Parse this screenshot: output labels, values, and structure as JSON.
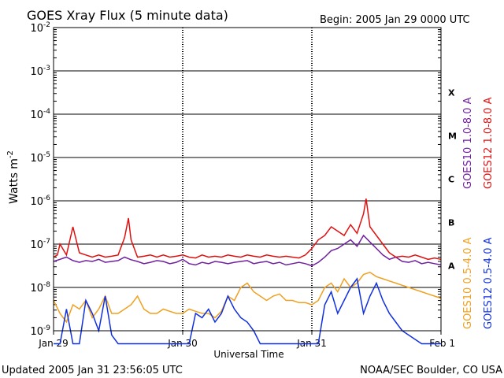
{
  "chart_data": {
    "type": "line",
    "title": "GOES Xray Flux (5 minute data)",
    "begin_label": "Begin:  2005 Jan 29 0000 UTC",
    "xlabel": "Universal Time",
    "ylabel": "Watts m",
    "ylabel_exponent": "-2",
    "updated": "Updated 2005 Jan 31 23:56:05 UTC",
    "credit": "NOAA/SEC Boulder, CO USA",
    "x_unit": "days since Jan 29 0000 UTC",
    "xlim": [
      0,
      3
    ],
    "x_ticks": [
      {
        "label": "Jan 29",
        "x": 0
      },
      {
        "label": "Jan 30",
        "x": 1
      },
      {
        "label": "Jan 31",
        "x": 2
      },
      {
        "label": "Feb 1",
        "x": 3
      }
    ],
    "y_scale": "log",
    "ylim": [
      1e-09,
      0.01
    ],
    "y_ticks": [
      {
        "base": "10",
        "exp": "-9",
        "value": -9
      },
      {
        "base": "10",
        "exp": "-8",
        "value": -8
      },
      {
        "base": "10",
        "exp": "-7",
        "value": -7
      },
      {
        "base": "10",
        "exp": "-6",
        "value": -6
      },
      {
        "base": "10",
        "exp": "-5",
        "value": -5
      },
      {
        "base": "10",
        "exp": "-4",
        "value": -4
      },
      {
        "base": "10",
        "exp": "-3",
        "value": -3
      },
      {
        "base": "10",
        "exp": "-2",
        "value": -2
      }
    ],
    "flare_classes": [
      {
        "label": "A",
        "log_low": -8
      },
      {
        "label": "B",
        "log_low": -7
      },
      {
        "label": "C",
        "log_low": -6
      },
      {
        "label": "M",
        "log_low": -5
      },
      {
        "label": "X",
        "log_low": -4
      }
    ],
    "grid": true,
    "legend_position": "right",
    "series": [
      {
        "name": "GOES10 1.0-8.0 A",
        "color": "#7020a0",
        "log_values": true,
        "x": [
          0,
          0.05,
          0.1,
          0.15,
          0.2,
          0.25,
          0.3,
          0.35,
          0.4,
          0.45,
          0.5,
          0.55,
          0.6,
          0.65,
          0.7,
          0.75,
          0.8,
          0.85,
          0.9,
          0.95,
          1.0,
          1.05,
          1.1,
          1.15,
          1.2,
          1.25,
          1.3,
          1.35,
          1.4,
          1.45,
          1.5,
          1.55,
          1.6,
          1.65,
          1.7,
          1.75,
          1.8,
          1.85,
          1.9,
          1.95,
          2.0,
          2.05,
          2.1,
          2.15,
          2.2,
          2.25,
          2.3,
          2.35,
          2.4,
          2.45,
          2.5,
          2.55,
          2.6,
          2.65,
          2.7,
          2.75,
          2.8,
          2.85,
          2.9,
          2.95,
          3.0
        ],
        "y": [
          -7.4,
          -7.35,
          -7.3,
          -7.38,
          -7.42,
          -7.38,
          -7.4,
          -7.35,
          -7.42,
          -7.4,
          -7.38,
          -7.3,
          -7.36,
          -7.4,
          -7.45,
          -7.42,
          -7.38,
          -7.4,
          -7.45,
          -7.42,
          -7.35,
          -7.45,
          -7.48,
          -7.42,
          -7.45,
          -7.4,
          -7.42,
          -7.45,
          -7.42,
          -7.4,
          -7.38,
          -7.45,
          -7.42,
          -7.4,
          -7.45,
          -7.42,
          -7.48,
          -7.45,
          -7.42,
          -7.45,
          -7.5,
          -7.42,
          -7.3,
          -7.15,
          -7.1,
          -7.0,
          -6.9,
          -7.05,
          -6.8,
          -6.95,
          -7.1,
          -7.25,
          -7.35,
          -7.3,
          -7.4,
          -7.42,
          -7.38,
          -7.45,
          -7.42,
          -7.45,
          -7.48
        ]
      },
      {
        "name": "GOES12 1.0-8.0 A",
        "color": "#e01010",
        "log_values": true,
        "x": [
          0,
          0.03,
          0.05,
          0.1,
          0.15,
          0.2,
          0.25,
          0.3,
          0.35,
          0.4,
          0.45,
          0.5,
          0.55,
          0.58,
          0.6,
          0.65,
          0.7,
          0.75,
          0.8,
          0.85,
          0.9,
          0.95,
          1.0,
          1.05,
          1.1,
          1.15,
          1.2,
          1.25,
          1.3,
          1.35,
          1.4,
          1.45,
          1.5,
          1.55,
          1.6,
          1.65,
          1.7,
          1.75,
          1.8,
          1.85,
          1.9,
          1.95,
          2.0,
          2.05,
          2.1,
          2.15,
          2.2,
          2.25,
          2.3,
          2.35,
          2.4,
          2.42,
          2.45,
          2.5,
          2.55,
          2.6,
          2.65,
          2.7,
          2.75,
          2.8,
          2.85,
          2.9,
          2.95,
          3.0
        ],
        "y": [
          -7.3,
          -7.25,
          -7.0,
          -7.25,
          -6.6,
          -7.2,
          -7.25,
          -7.3,
          -7.25,
          -7.3,
          -7.28,
          -7.25,
          -6.85,
          -6.4,
          -6.9,
          -7.3,
          -7.28,
          -7.25,
          -7.3,
          -7.25,
          -7.3,
          -7.28,
          -7.25,
          -7.3,
          -7.32,
          -7.25,
          -7.3,
          -7.28,
          -7.3,
          -7.25,
          -7.28,
          -7.3,
          -7.25,
          -7.28,
          -7.3,
          -7.25,
          -7.28,
          -7.3,
          -7.28,
          -7.3,
          -7.32,
          -7.25,
          -7.1,
          -6.9,
          -6.8,
          -6.6,
          -6.7,
          -6.8,
          -6.55,
          -6.75,
          -6.3,
          -5.95,
          -6.6,
          -6.8,
          -7.0,
          -7.2,
          -7.3,
          -7.28,
          -7.3,
          -7.25,
          -7.3,
          -7.35,
          -7.32,
          -7.35
        ]
      },
      {
        "name": "GOES10 0.5-4.0 A",
        "color": "#f0a020",
        "log_values": true,
        "x": [
          0,
          0.05,
          0.1,
          0.15,
          0.2,
          0.25,
          0.3,
          0.35,
          0.4,
          0.45,
          0.5,
          0.55,
          0.6,
          0.65,
          0.7,
          0.75,
          0.8,
          0.85,
          0.9,
          0.95,
          1.0,
          1.05,
          1.1,
          1.15,
          1.2,
          1.25,
          1.3,
          1.35,
          1.4,
          1.45,
          1.5,
          1.55,
          1.6,
          1.65,
          1.7,
          1.75,
          1.8,
          1.85,
          1.9,
          1.95,
          2.0,
          2.05,
          2.1,
          2.15,
          2.2,
          2.25,
          2.3,
          2.35,
          2.4,
          2.45,
          2.5,
          2.55,
          2.6,
          2.65,
          2.7,
          2.75,
          2.8,
          2.85,
          2.9,
          2.95,
          3.0
        ],
        "y": [
          -8.3,
          -8.6,
          -8.8,
          -8.4,
          -8.5,
          -8.3,
          -8.7,
          -8.5,
          -8.2,
          -8.6,
          -8.6,
          -8.5,
          -8.4,
          -8.2,
          -8.5,
          -8.6,
          -8.6,
          -8.5,
          -8.55,
          -8.6,
          -8.6,
          -8.5,
          -8.55,
          -8.6,
          -8.6,
          -8.7,
          -8.55,
          -8.2,
          -8.3,
          -8.0,
          -7.9,
          -8.1,
          -8.2,
          -8.3,
          -8.2,
          -8.15,
          -8.3,
          -8.3,
          -8.35,
          -8.35,
          -8.4,
          -8.3,
          -8.0,
          -7.9,
          -8.1,
          -7.8,
          -8.0,
          -7.9,
          -7.7,
          -7.65,
          -7.75,
          -7.8,
          -7.85,
          -7.9,
          -7.95,
          -8.0,
          -8.05,
          -8.1,
          -8.15,
          -8.2,
          -8.25
        ]
      },
      {
        "name": "GOES12 0.5-4.0 A",
        "color": "#1030e0",
        "log_values": true,
        "x": [
          0,
          0.05,
          0.1,
          0.15,
          0.2,
          0.25,
          0.3,
          0.35,
          0.4,
          0.45,
          0.5,
          0.55,
          0.6,
          0.65,
          0.7,
          0.75,
          0.8,
          0.85,
          0.9,
          0.95,
          1.0,
          1.05,
          1.1,
          1.15,
          1.2,
          1.25,
          1.3,
          1.35,
          1.4,
          1.45,
          1.5,
          1.55,
          1.6,
          1.65,
          1.7,
          1.75,
          1.8,
          1.85,
          1.9,
          1.95,
          2.0,
          2.05,
          2.1,
          2.15,
          2.2,
          2.25,
          2.3,
          2.35,
          2.4,
          2.45,
          2.5,
          2.55,
          2.6,
          2.65,
          2.7,
          2.75,
          2.8,
          2.85,
          2.9,
          2.95,
          3.0
        ],
        "y": [
          -9.3,
          -9.3,
          -8.5,
          -9.3,
          -9.3,
          -8.3,
          -8.6,
          -9.0,
          -8.2,
          -9.1,
          -9.3,
          -9.3,
          -9.3,
          -9.3,
          -9.3,
          -9.3,
          -9.3,
          -9.3,
          -9.3,
          -9.3,
          -9.3,
          -9.3,
          -8.6,
          -8.7,
          -8.5,
          -8.8,
          -8.6,
          -8.2,
          -8.5,
          -8.7,
          -8.8,
          -9.0,
          -9.3,
          -9.3,
          -9.3,
          -9.3,
          -9.3,
          -9.3,
          -9.3,
          -9.3,
          -9.3,
          -9.3,
          -8.4,
          -8.1,
          -8.6,
          -8.3,
          -8.0,
          -7.8,
          -8.6,
          -8.2,
          -7.9,
          -8.3,
          -8.6,
          -8.8,
          -9.0,
          -9.1,
          -9.2,
          -9.3,
          -9.3,
          -9.3,
          -9.3
        ]
      }
    ]
  }
}
